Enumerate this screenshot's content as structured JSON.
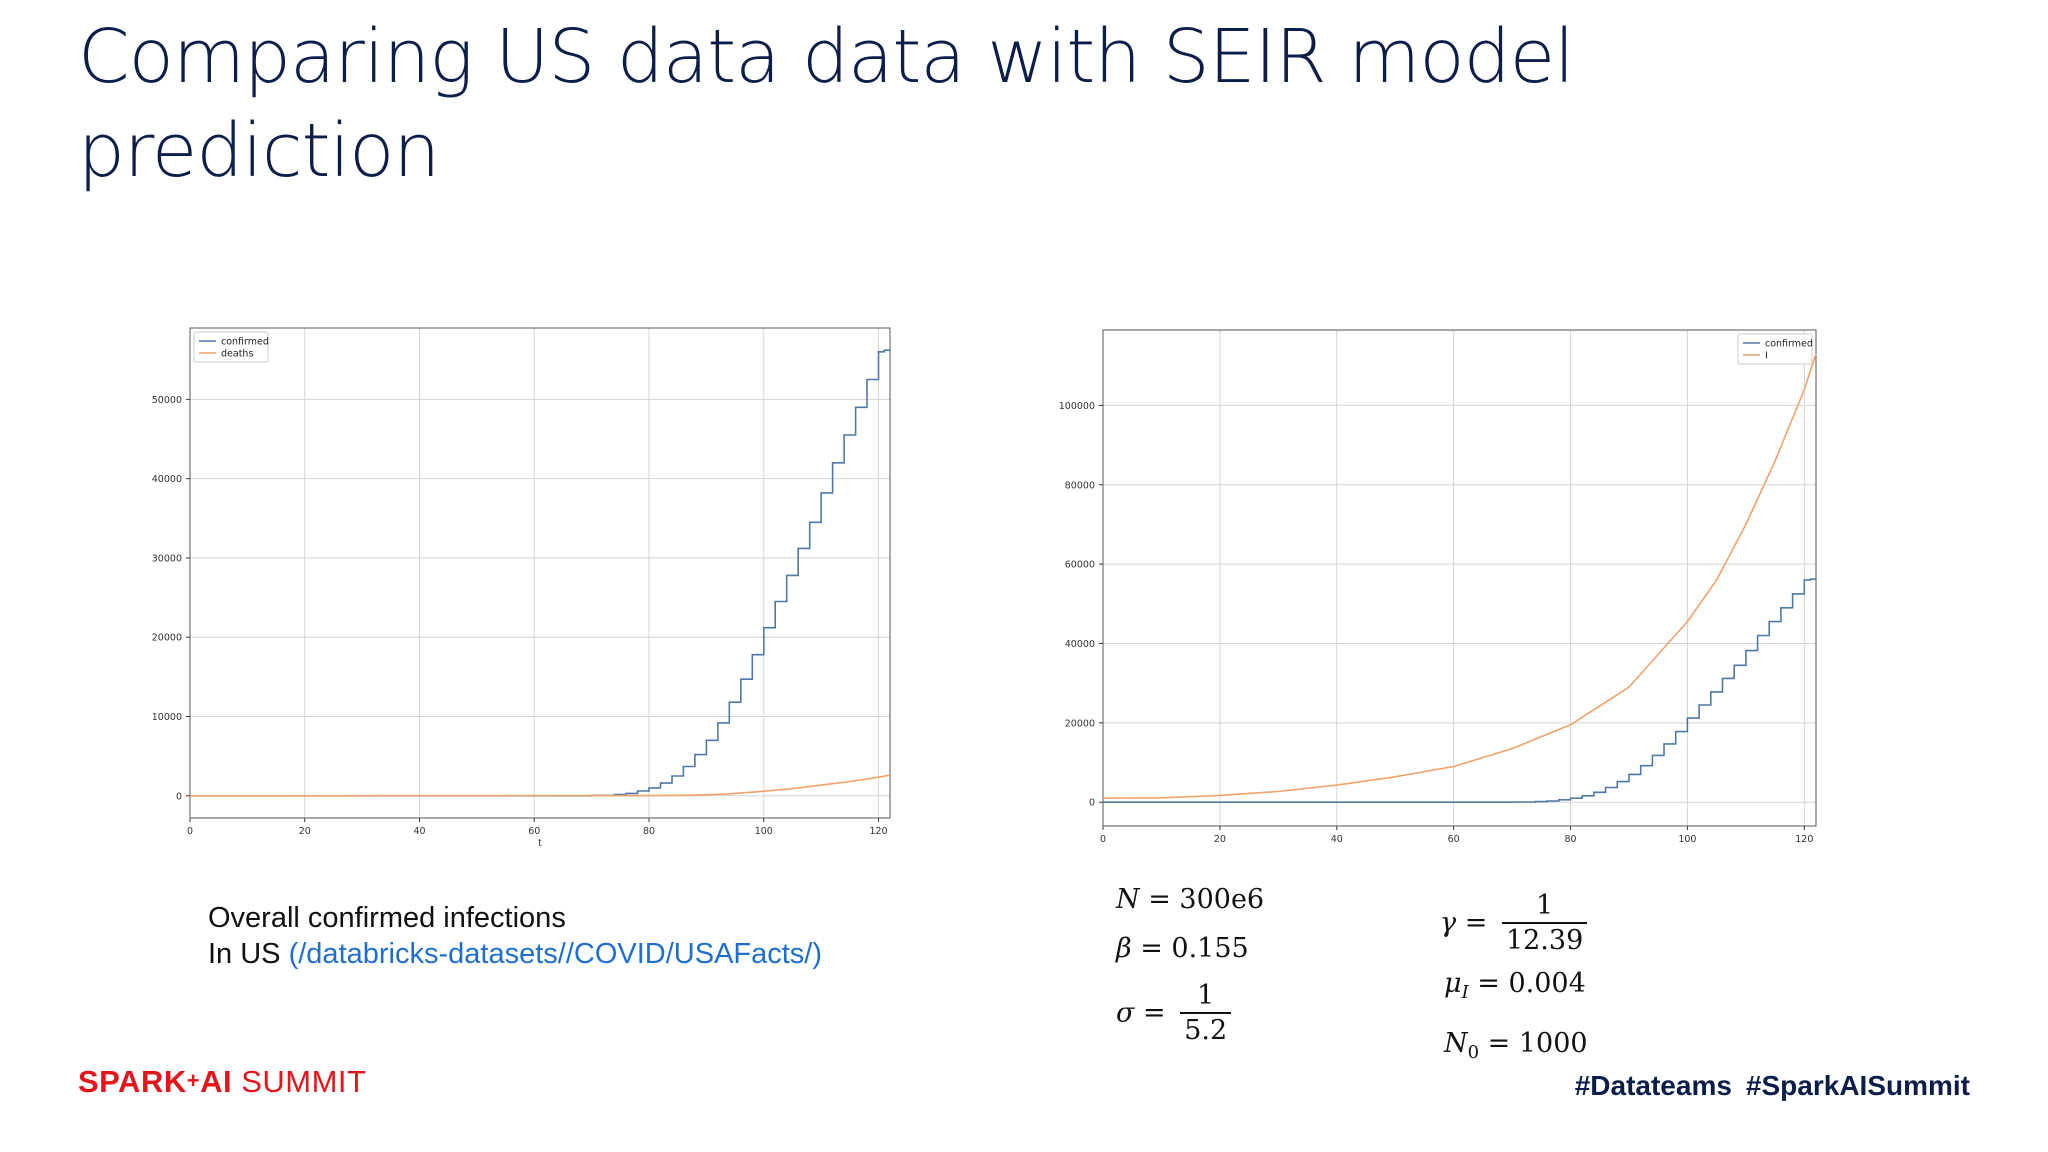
{
  "slide": {
    "title_line1": "Comparing US data data with SEIR model",
    "title_line2": "prediction",
    "caption_line1": "Overall confirmed infections",
    "caption_prefix": "In US ",
    "caption_link": "(/databricks-datasets//COVID/USAFacts/)",
    "logo_left": "SPARK",
    "logo_plus": "+",
    "logo_ai": "AI",
    "logo_right": "SUMMIT",
    "hashtag1": "#Datateams",
    "hashtag2": "#SparkAISummit"
  },
  "equations": {
    "N_lhs": "N",
    "N_rhs": " = 300e6",
    "beta_lhs": "β",
    "beta_rhs": " = 0.155",
    "sigma_lhs": "σ",
    "sigma_eq": " =",
    "sigma_num": "1",
    "sigma_den": "5.2",
    "gamma_lhs": "γ",
    "gamma_eq": " =",
    "gamma_num": "1",
    "gamma_den": "12.39",
    "mu_lhs": "μ",
    "mu_sub": "I",
    "mu_rhs": " = 0.004",
    "N0_lhs": "N",
    "N0_sub": "0",
    "N0_rhs": " = 1000"
  },
  "chart_data": [
    {
      "type": "line",
      "xlabel": "t",
      "ylabel": "",
      "xlim": [
        0,
        122
      ],
      "ylim": [
        -2800,
        59000
      ],
      "xticks": [
        0,
        20,
        40,
        60,
        80,
        100,
        120
      ],
      "yticks": [
        0,
        10000,
        20000,
        30000,
        40000,
        50000
      ],
      "grid": true,
      "legend_position": "top-left",
      "colors": {
        "confirmed": "#4e79a7",
        "deaths": "#f0a26b"
      },
      "series": [
        {
          "name": "confirmed",
          "step": true,
          "x": [
            0,
            70,
            74,
            76,
            78,
            80,
            82,
            84,
            86,
            88,
            90,
            92,
            94,
            96,
            98,
            100,
            102,
            104,
            106,
            108,
            110,
            112,
            114,
            116,
            118,
            120,
            121,
            122
          ],
          "y": [
            0,
            50,
            150,
            300,
            600,
            1000,
            1600,
            2500,
            3700,
            5200,
            7000,
            9200,
            11800,
            14700,
            17800,
            21200,
            24500,
            27800,
            31200,
            34500,
            38200,
            42000,
            45500,
            49000,
            52500,
            56000,
            56200,
            56300
          ]
        },
        {
          "name": "deaths",
          "step": false,
          "x": [
            0,
            80,
            86,
            90,
            94,
            98,
            102,
            106,
            110,
            114,
            118,
            122
          ],
          "y": [
            0,
            20,
            60,
            120,
            250,
            450,
            700,
            1000,
            1350,
            1700,
            2100,
            2600
          ]
        }
      ]
    },
    {
      "type": "line",
      "xlabel": "",
      "ylabel": "",
      "xlim": [
        0,
        122
      ],
      "ylim": [
        -6000,
        119000
      ],
      "xticks": [
        0,
        20,
        40,
        60,
        80,
        100,
        120
      ],
      "yticks": [
        0,
        20000,
        40000,
        60000,
        80000,
        100000
      ],
      "grid": true,
      "legend_position": "top-right",
      "colors": {
        "confirmed": "#4e79a7",
        "I": "#f0a26b"
      },
      "series": [
        {
          "name": "confirmed",
          "step": true,
          "x": [
            0,
            70,
            74,
            76,
            78,
            80,
            82,
            84,
            86,
            88,
            90,
            92,
            94,
            96,
            98,
            100,
            102,
            104,
            106,
            108,
            110,
            112,
            114,
            116,
            118,
            120,
            121,
            122
          ],
          "y": [
            0,
            50,
            150,
            300,
            600,
            1000,
            1600,
            2500,
            3700,
            5200,
            7000,
            9200,
            11800,
            14700,
            17800,
            21200,
            24500,
            27800,
            31200,
            34500,
            38200,
            42000,
            45500,
            49000,
            52500,
            56000,
            56200,
            56300
          ]
        },
        {
          "name": "I",
          "step": false,
          "x": [
            0,
            10,
            20,
            30,
            40,
            50,
            60,
            70,
            80,
            90,
            100,
            105,
            110,
            115,
            120,
            122
          ],
          "y": [
            1000,
            1100,
            1700,
            2700,
            4300,
            6400,
            9000,
            13500,
            19500,
            29000,
            45500,
            56000,
            70000,
            86000,
            104000,
            113000
          ]
        }
      ]
    }
  ]
}
